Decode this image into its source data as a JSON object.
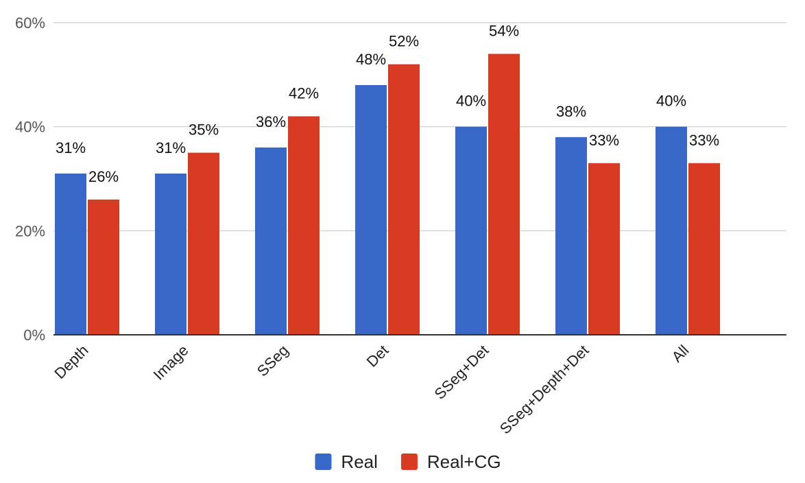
{
  "chart_data": {
    "type": "bar",
    "categories": [
      "Depth",
      "Image",
      "SSeg",
      "Det",
      "SSeg+Det",
      "SSeg+Depth+Det",
      "All"
    ],
    "series": [
      {
        "name": "Real",
        "color": "#3867C8",
        "values": [
          31,
          31,
          36,
          48,
          40,
          38,
          40
        ],
        "labels": [
          "31%",
          "31%",
          "36%",
          "48%",
          "40%",
          "38%",
          "40%"
        ]
      },
      {
        "name": "Real+CG",
        "color": "#D93A22",
        "values": [
          26,
          35,
          42,
          52,
          54,
          33,
          33
        ],
        "labels": [
          "26%",
          "35%",
          "42%",
          "52%",
          "54%",
          "33%",
          "33%"
        ]
      }
    ],
    "ylim": [
      0,
      60
    ],
    "yticks": [
      0,
      20,
      40,
      60
    ],
    "ytick_labels": [
      "0%",
      "20%",
      "40%",
      "60%"
    ],
    "grid": true,
    "legend_position": "bottom-center",
    "title": "",
    "xlabel": "",
    "ylabel": ""
  }
}
